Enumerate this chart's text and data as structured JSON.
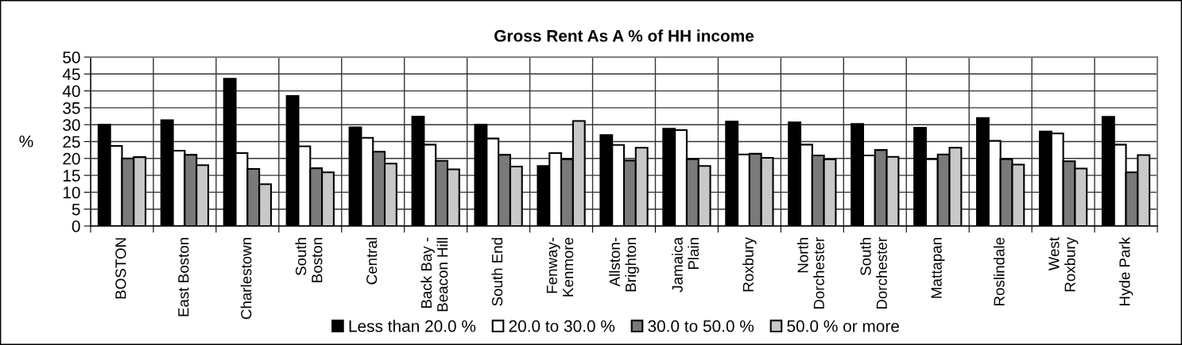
{
  "chart_data": {
    "type": "bar",
    "title": "Gross Rent As A % of HH income",
    "ylabel": "%",
    "categories": [
      "BOSTON",
      "East Boston",
      "Charlestown",
      "South\nBoston",
      "Central",
      "Back Bay -\nBeacon Hill",
      "South End",
      "Fenway-\nKenmore",
      "Allston-\nBrighton",
      "Jamaica\nPlain",
      "Roxbury",
      "North\nDorchester",
      "South\nDorchester",
      "Mattapan",
      "Roslindale",
      "West\nRoxbury",
      "Hyde Park"
    ],
    "series": [
      {
        "name": "Less than 20.0 %",
        "color": "#000000",
        "values": [
          30.0,
          31.3,
          43.6,
          38.5,
          29.2,
          32.4,
          30.0,
          17.8,
          26.9,
          28.8,
          30.9,
          30.7,
          30.2,
          29.1,
          32.0,
          28.0,
          32.3
        ]
      },
      {
        "name": "20.0 to 30.0 %",
        "color": "#ffffff",
        "values": [
          23.7,
          22.3,
          21.6,
          23.6,
          26.1,
          24.1,
          25.9,
          21.6,
          24.0,
          28.4,
          21.2,
          24.1,
          20.9,
          19.8,
          25.2,
          27.4,
          24.1
        ]
      },
      {
        "name": "30.0 to 50.0 %",
        "color": "#7a7a7a",
        "values": [
          20.0,
          21.1,
          16.9,
          17.1,
          22.0,
          19.3,
          21.1,
          19.8,
          19.4,
          19.8,
          21.4,
          20.9,
          22.5,
          21.2,
          19.8,
          19.2,
          15.9
        ]
      },
      {
        "name": "50.0 % or more",
        "color": "#c8c8c8",
        "values": [
          20.4,
          18.0,
          12.4,
          15.9,
          18.5,
          16.8,
          17.6,
          31.1,
          23.2,
          17.8,
          20.2,
          19.7,
          20.5,
          23.2,
          18.2,
          17.0,
          21.0
        ]
      }
    ],
    "ylim": [
      0,
      50
    ],
    "yticks": [
      0,
      5,
      10,
      15,
      20,
      25,
      30,
      35,
      40,
      45,
      50
    ],
    "grid": true,
    "legend": "bottom"
  }
}
